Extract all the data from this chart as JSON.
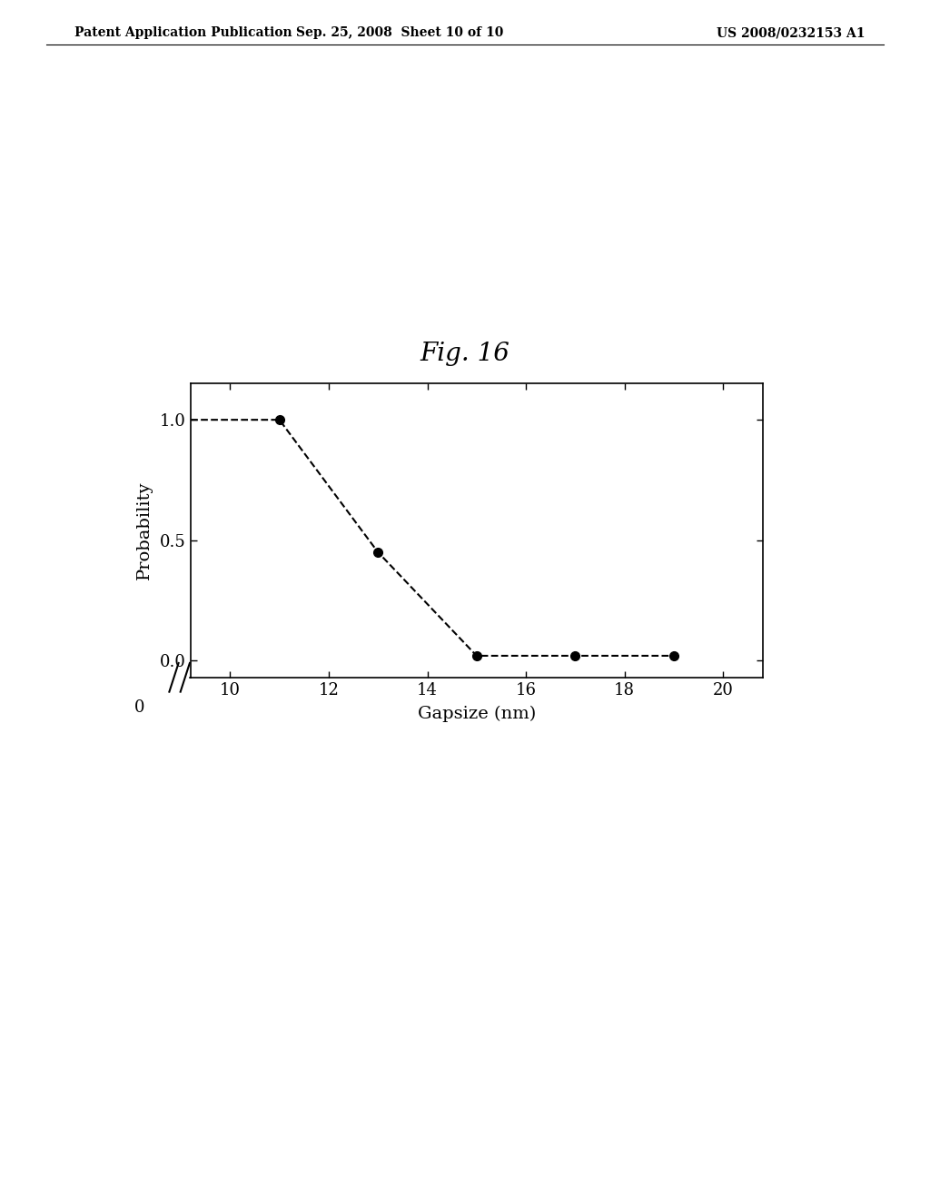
{
  "title": "Fig. 16",
  "xlabel": "Gapsize (nm)",
  "ylabel": "Probability",
  "x_data": [
    9,
    11,
    13,
    15,
    17,
    19
  ],
  "y_data": [
    1.0,
    1.0,
    0.45,
    0.02,
    0.02,
    0.02
  ],
  "yticks": [
    0.0,
    0.5,
    1.0
  ],
  "xticks": [
    10,
    12,
    14,
    16,
    18,
    20
  ],
  "line_color": "#000000",
  "marker_color": "#000000",
  "background_color": "#ffffff",
  "header_left": "Patent Application Publication",
  "header_center": "Sep. 25, 2008  Sheet 10 of 10",
  "header_right": "US 2008/0232153 A1",
  "title_fontsize": 20,
  "axis_fontsize": 14,
  "tick_fontsize": 13,
  "header_fontsize": 10
}
